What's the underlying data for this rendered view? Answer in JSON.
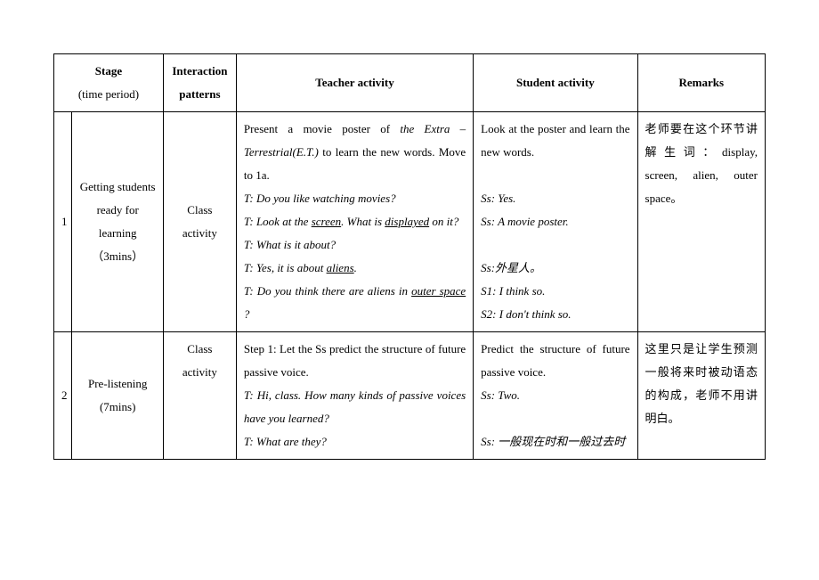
{
  "headers": {
    "stage": "Stage",
    "stage_sub": "(time period)",
    "patterns": "Interaction patterns",
    "teacher": "Teacher activity",
    "student": "Student activity",
    "remarks": "Remarks"
  },
  "rows": [
    {
      "num": "1",
      "stage_title": "Getting students ready for learning",
      "stage_time": "（3mins）",
      "pattern": "Class activity",
      "teacher_lines": [
        {
          "text": "Present a movie poster of ",
          "inline": true
        },
        {
          "text": "the Extra –Terrestrial(E.T.)",
          "italic": true,
          "inline": true
        },
        {
          "text": " to learn the new words. Move to 1a.",
          "inline": true,
          "br": true
        },
        {
          "text": "T: Do you like watching movies?",
          "italic": true,
          "br": true
        },
        {
          "seg": [
            "T: Look at the ",
            {
              "u": "screen"
            },
            ". What is ",
            {
              "u": "displayed"
            },
            " on it?"
          ],
          "italic": true,
          "br": true
        },
        {
          "text": "T: What is it about?",
          "italic": true,
          "br": true
        },
        {
          "seg": [
            "T: Yes, it is about ",
            {
              "u": "aliens"
            },
            "."
          ],
          "italic": true,
          "br": true
        },
        {
          "seg": [
            "T: Do you think there are aliens in ",
            {
              "u": "outer space"
            },
            " ?"
          ],
          "italic": true,
          "br": true
        }
      ],
      "student_lines": [
        {
          "text": "Look at the poster and learn the new words.",
          "br": true
        },
        {
          "text": "",
          "br": true
        },
        {
          "text": "Ss: Yes.",
          "italic": true,
          "br": true
        },
        {
          "text": "Ss: A movie poster.",
          "italic": true,
          "br": true
        },
        {
          "text": "",
          "br": true
        },
        {
          "text": "Ss:外星人。",
          "italic": true,
          "br": true
        },
        {
          "text": "S1: I think so.",
          "italic": true,
          "br": true
        },
        {
          "text": "S2: I don't think so.",
          "italic": true,
          "br": true
        }
      ],
      "remarks": "老师要在这个环节讲解生词：display, screen, alien, outer space。"
    },
    {
      "num": "2",
      "stage_title": "Pre-listening",
      "stage_time": "(7mins)",
      "pattern": "Class activity",
      "teacher_lines": [
        {
          "text": "Step 1: Let the Ss predict the structure of future passive voice.",
          "br": true
        },
        {
          "text": "T: Hi, class. How many kinds of passive voices have you learned?",
          "italic": true,
          "br": true
        },
        {
          "text": "T: What are they?",
          "italic": true,
          "br": true
        }
      ],
      "student_lines": [
        {
          "text": "Predict the structure of future passive voice.",
          "br": true
        },
        {
          "text": "Ss: Two.",
          "italic": true,
          "br": true
        },
        {
          "text": "",
          "br": true
        },
        {
          "text": "Ss: 一般现在时和一般过去时",
          "italic": true,
          "br": true
        }
      ],
      "remarks": "这里只是让学生预测一般将来时被动语态的构成，老师不用讲明白。"
    }
  ]
}
